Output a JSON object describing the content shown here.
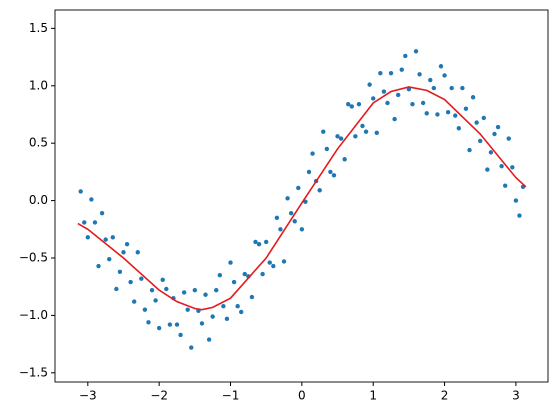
{
  "chart_data": {
    "type": "scatter",
    "xlim": [
      -3.46,
      3.45
    ],
    "ylim": [
      -1.58,
      1.66
    ],
    "xticks": [
      {
        "value": -3,
        "label": "−3"
      },
      {
        "value": -2,
        "label": "−2"
      },
      {
        "value": -1,
        "label": "−1"
      },
      0,
      1,
      2,
      3
    ],
    "yticks": [
      {
        "value": -1.5,
        "label": "−1.5"
      },
      {
        "value": -1.0,
        "label": "−1.0"
      },
      {
        "value": -0.5,
        "label": "−0.5"
      },
      {
        "value": 0.0,
        "label": "0.0"
      },
      {
        "value": 0.5,
        "label": "0.5"
      },
      {
        "value": 1.0,
        "label": "1.0"
      },
      {
        "value": 1.5,
        "label": "1.5"
      }
    ],
    "series": [
      {
        "type": "scatter",
        "color": "#1f77b4",
        "x": [
          -3.1,
          -3.0,
          -2.9,
          -2.8,
          -2.7,
          -2.6,
          -2.5,
          -2.4,
          -2.3,
          -2.2,
          -2.1,
          -2.0,
          -1.9,
          -1.8,
          -1.7,
          -1.6,
          -1.5,
          -1.4,
          -1.3,
          -1.2,
          -1.1,
          -1.0,
          -0.9,
          -0.8,
          -0.7,
          -0.6,
          -0.5,
          -0.4,
          -0.3,
          -0.2,
          -0.1,
          0,
          0.1,
          0.2,
          0.3,
          0.4,
          0.5,
          0.6,
          0.7,
          0.8,
          0.9,
          1.0,
          1.1,
          1.2,
          1.3,
          1.4,
          1.5,
          1.6,
          1.7,
          1.8,
          1.9,
          2.0,
          2.1,
          2.2,
          2.3,
          2.4,
          2.5,
          2.6,
          2.7,
          2.8,
          2.9,
          3.0,
          3.1,
          -3.05,
          -2.95,
          -2.85,
          -2.75,
          -2.65,
          -2.55,
          -2.45,
          -2.35,
          -2.25,
          -2.15,
          -2.05,
          -1.95,
          -1.85,
          -1.75,
          -1.65,
          -1.55,
          -1.45,
          -1.35,
          -1.25,
          -1.15,
          -1.05,
          -0.95,
          -0.85,
          -0.75,
          -0.65,
          -0.55,
          -0.45,
          -0.35,
          -0.25,
          -0.15,
          -0.05,
          0.05,
          0.15,
          0.25,
          0.35,
          0.45,
          0.55,
          0.65,
          0.75,
          0.85,
          0.95,
          1.05,
          1.15,
          1.25,
          1.35,
          1.45,
          1.55,
          1.65,
          1.75,
          1.85,
          1.95,
          2.05,
          2.15,
          2.25,
          2.35,
          2.45,
          2.55,
          2.65,
          2.75,
          2.85,
          2.95,
          3.05
        ],
        "y": [
          0.08,
          -0.32,
          -0.19,
          -0.11,
          -0.51,
          -0.77,
          -0.45,
          -0.71,
          -0.45,
          -0.95,
          -0.78,
          -1.11,
          -0.77,
          -0.85,
          -1.17,
          -0.95,
          -0.78,
          -1.07,
          -1.21,
          -0.78,
          -0.92,
          -0.54,
          -0.92,
          -0.64,
          -0.84,
          -0.38,
          -0.36,
          -0.57,
          -0.25,
          0.02,
          -0.18,
          -0.25,
          0.25,
          0.17,
          0.6,
          0.25,
          0.56,
          0.36,
          0.82,
          0.84,
          0.6,
          0.89,
          1.11,
          0.85,
          0.71,
          1.14,
          0.97,
          1.3,
          0.85,
          1.05,
          0.75,
          1.09,
          0.98,
          0.63,
          0.8,
          0.9,
          0.52,
          0.27,
          0.58,
          0.3,
          0.54,
          0.0,
          0.12,
          -0.19,
          0.01,
          -0.57,
          -0.34,
          -0.32,
          -0.62,
          -0.38,
          -0.88,
          -0.68,
          -1.06,
          -0.87,
          -0.69,
          -1.08,
          -1.08,
          -0.8,
          -1.28,
          -0.96,
          -0.82,
          -1.01,
          -0.65,
          -1.03,
          -0.71,
          -0.97,
          -0.66,
          -0.36,
          -0.64,
          -0.54,
          -0.15,
          -0.53,
          -0.11,
          0.11,
          -0.01,
          0.41,
          0.09,
          0.45,
          0.22,
          0.54,
          0.84,
          0.56,
          0.65,
          1.01,
          0.59,
          0.95,
          1.11,
          0.92,
          1.26,
          0.84,
          1.1,
          0.76,
          0.98,
          1.17,
          0.77,
          0.74,
          0.98,
          0.44,
          0.68,
          0.72,
          0.42,
          0.64,
          0.13,
          0.29,
          -0.13
        ]
      },
      {
        "type": "line",
        "color": "#e41a1c",
        "x": [
          -3.14,
          -3.0,
          -2.5,
          -2.0,
          -1.75,
          -1.5,
          -1.4,
          -1.25,
          -1.0,
          -0.5,
          0.0,
          0.5,
          1.0,
          1.25,
          1.5,
          1.75,
          2.0,
          2.5,
          3.0,
          3.14
        ],
        "y": [
          -0.2,
          -0.25,
          -0.5,
          -0.78,
          -0.88,
          -0.94,
          -0.95,
          -0.93,
          -0.85,
          -0.5,
          -0.02,
          0.45,
          0.85,
          0.95,
          0.99,
          0.96,
          0.88,
          0.58,
          0.2,
          0.12
        ]
      }
    ]
  }
}
